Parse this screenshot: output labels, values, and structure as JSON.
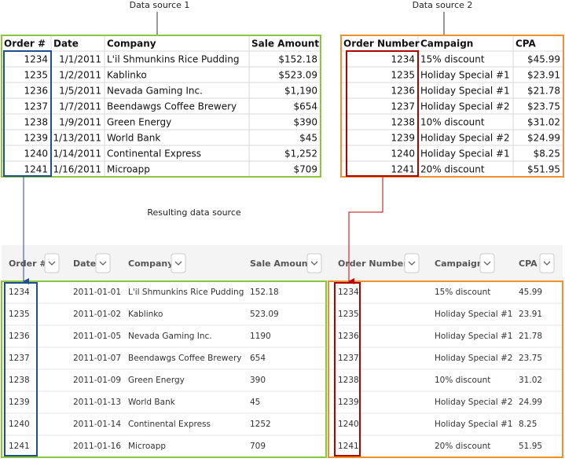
{
  "source1": {
    "label": "Data source 1",
    "headers": [
      "Order #",
      "Date",
      "Company",
      "Sale Amount"
    ],
    "rows": [
      [
        "1234",
        "1/1/2011",
        "L'il Shmunkins Rice Pudding",
        "$152.18"
      ],
      [
        "1235",
        "1/2/2011",
        "Kablinko",
        "$523.09"
      ],
      [
        "1236",
        "1/5/2011",
        "Nevada Gaming Inc.",
        "$1,190"
      ],
      [
        "1237",
        "1/7/2011",
        "Beendawgs Coffee Brewery",
        "$654"
      ],
      [
        "1238",
        "1/9/2011",
        "Green Energy",
        "$390"
      ],
      [
        "1239",
        "1/13/2011",
        "World Bank",
        "$45"
      ],
      [
        "1240",
        "1/14/2011",
        "Continental Express",
        "$1,252"
      ],
      [
        "1241",
        "1/16/2011",
        "Microapp",
        "$709"
      ]
    ]
  },
  "source2": {
    "label": "Data source 2",
    "headers": [
      "Order Number",
      "Campaign",
      "CPA"
    ],
    "rows": [
      [
        "1234",
        "15% discount",
        "$45.99"
      ],
      [
        "1235",
        "Holiday Special #1",
        "$23.91"
      ],
      [
        "1236",
        "Holiday Special #1",
        "$21.78"
      ],
      [
        "1237",
        "Holiday Special #2",
        "$23.75"
      ],
      [
        "1238",
        "10% discount",
        "$31.02"
      ],
      [
        "1239",
        "Holiday Special #2",
        "$24.99"
      ],
      [
        "1240",
        "Holiday Special #1",
        "$8.25"
      ],
      [
        "1241",
        "20% discount",
        "$51.95"
      ]
    ]
  },
  "result": {
    "label": "Resulting data source",
    "headers": [
      "Order #",
      "Date",
      "Company",
      "Sale Amount",
      "Order Number",
      "Campaign",
      "CPA"
    ],
    "rows": [
      [
        "1234",
        "2011-01-01",
        "L'il Shmunkins Rice Pudding",
        "152.18",
        "1234",
        "15% discount",
        "45.99"
      ],
      [
        "1235",
        "2011-01-02",
        "Kablinko",
        "523.09",
        "1235",
        "Holiday Special #1",
        "23.91"
      ],
      [
        "1236",
        "2011-01-05",
        "Nevada Gaming Inc.",
        "1190",
        "1236",
        "Holiday Special #1",
        "21.78"
      ],
      [
        "1237",
        "2011-01-07",
        "Beendawgs Coffee Brewery",
        "654",
        "1237",
        "Holiday Special #2",
        "23.75"
      ],
      [
        "1238",
        "2011-01-09",
        "Green Energy",
        "390",
        "1238",
        "10% discount",
        "31.02"
      ],
      [
        "1239",
        "2011-01-13",
        "World Bank",
        "45",
        "1239",
        "Holiday Special #2",
        "24.99"
      ],
      [
        "1240",
        "2011-01-14",
        "Continental Express",
        "1252",
        "1240",
        "Holiday Special #1",
        "8.25"
      ],
      [
        "1241",
        "2011-01-16",
        "Microapp",
        "709",
        "1241",
        "20% discount",
        "51.95"
      ]
    ]
  }
}
